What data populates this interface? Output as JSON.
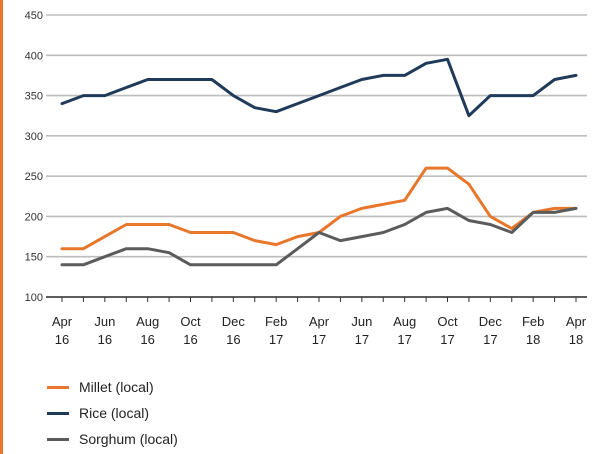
{
  "chart_data": {
    "type": "line",
    "title": "",
    "xlabel": "",
    "ylabel": "",
    "ylim": [
      100,
      450
    ],
    "yticks": [
      100,
      150,
      200,
      250,
      300,
      350,
      400,
      450
    ],
    "x": [
      "Apr 16",
      "May 16",
      "Jun 16",
      "Jul 16",
      "Aug 16",
      "Sep 16",
      "Oct 16",
      "Nov 16",
      "Dec 16",
      "Jan 17",
      "Feb 17",
      "Mar 17",
      "Apr 17",
      "May 17",
      "Jun 17",
      "Jul 17",
      "Aug 17",
      "Sep 17",
      "Oct 17",
      "Nov 17",
      "Dec 17",
      "Jan 18",
      "Feb 18",
      "Mar 18",
      "Apr 18"
    ],
    "xtick_labels": [
      {
        "top": "Apr",
        "bottom": "16"
      },
      {
        "top": "Jun",
        "bottom": "16"
      },
      {
        "top": "Aug",
        "bottom": "16"
      },
      {
        "top": "Oct",
        "bottom": "16"
      },
      {
        "top": "Dec",
        "bottom": "16"
      },
      {
        "top": "Feb",
        "bottom": "17"
      },
      {
        "top": "Apr",
        "bottom": "17"
      },
      {
        "top": "Jun",
        "bottom": "17"
      },
      {
        "top": "Aug",
        "bottom": "17"
      },
      {
        "top": "Oct",
        "bottom": "17"
      },
      {
        "top": "Dec",
        "bottom": "17"
      },
      {
        "top": "Feb",
        "bottom": "18"
      },
      {
        "top": "Apr",
        "bottom": "18"
      }
    ],
    "grid": true,
    "legend_position": "bottom-left",
    "series": [
      {
        "name": "Millet (local)",
        "color": "#e8762b",
        "values": [
          160,
          160,
          175,
          190,
          190,
          190,
          180,
          180,
          180,
          170,
          165,
          175,
          180,
          200,
          210,
          215,
          220,
          260,
          260,
          240,
          200,
          185,
          205,
          210,
          210
        ]
      },
      {
        "name": "Rice (local)",
        "color": "#1f3a5a",
        "values": [
          340,
          350,
          350,
          360,
          370,
          370,
          370,
          370,
          350,
          335,
          330,
          340,
          350,
          360,
          370,
          375,
          375,
          390,
          395,
          325,
          350,
          350,
          350,
          370,
          375
        ]
      },
      {
        "name": "Sorghum (local)",
        "color": "#5b5b5b",
        "values": [
          140,
          140,
          150,
          160,
          160,
          155,
          140,
          140,
          140,
          140,
          140,
          160,
          180,
          170,
          175,
          180,
          190,
          205,
          210,
          195,
          190,
          180,
          205,
          205,
          210
        ]
      }
    ]
  }
}
